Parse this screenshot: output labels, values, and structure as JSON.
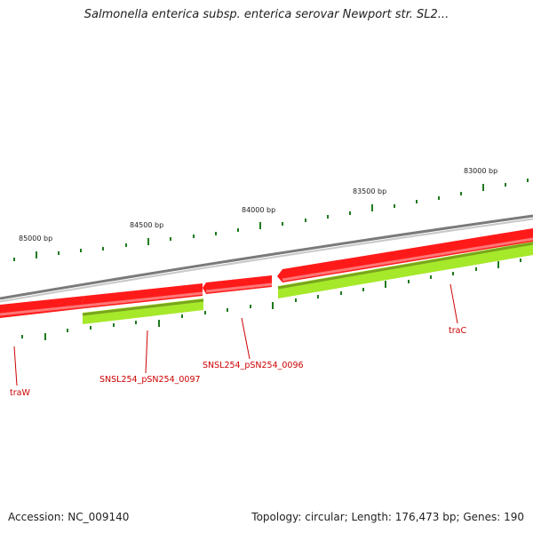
{
  "title": "Salmonella enterica subsp. enterica serovar Newport str. SL2...",
  "footer": {
    "accession": "Accession: NC_009140",
    "summary": "Topology: circular; Length: 176,473 bp; Genes: 190"
  },
  "map": {
    "position_labels": [
      "85000 bp",
      "84500 bp",
      "84000 bp",
      "83500 bp",
      "83000 bp"
    ],
    "genes": [
      {
        "name": "traW",
        "strand": "reverse"
      },
      {
        "name": "SNSL254_pSN254_0097",
        "strand": "reverse"
      },
      {
        "name": "SNSL254_pSN254_0096",
        "strand": "reverse"
      },
      {
        "name": "traC",
        "strand": "reverse"
      }
    ],
    "colors": {
      "backbone": "#888888",
      "gene_red": "#ff1a1a",
      "gene_green": "#99dd22",
      "tick": "#1e7a1e",
      "label_red": "#cc0000"
    }
  }
}
